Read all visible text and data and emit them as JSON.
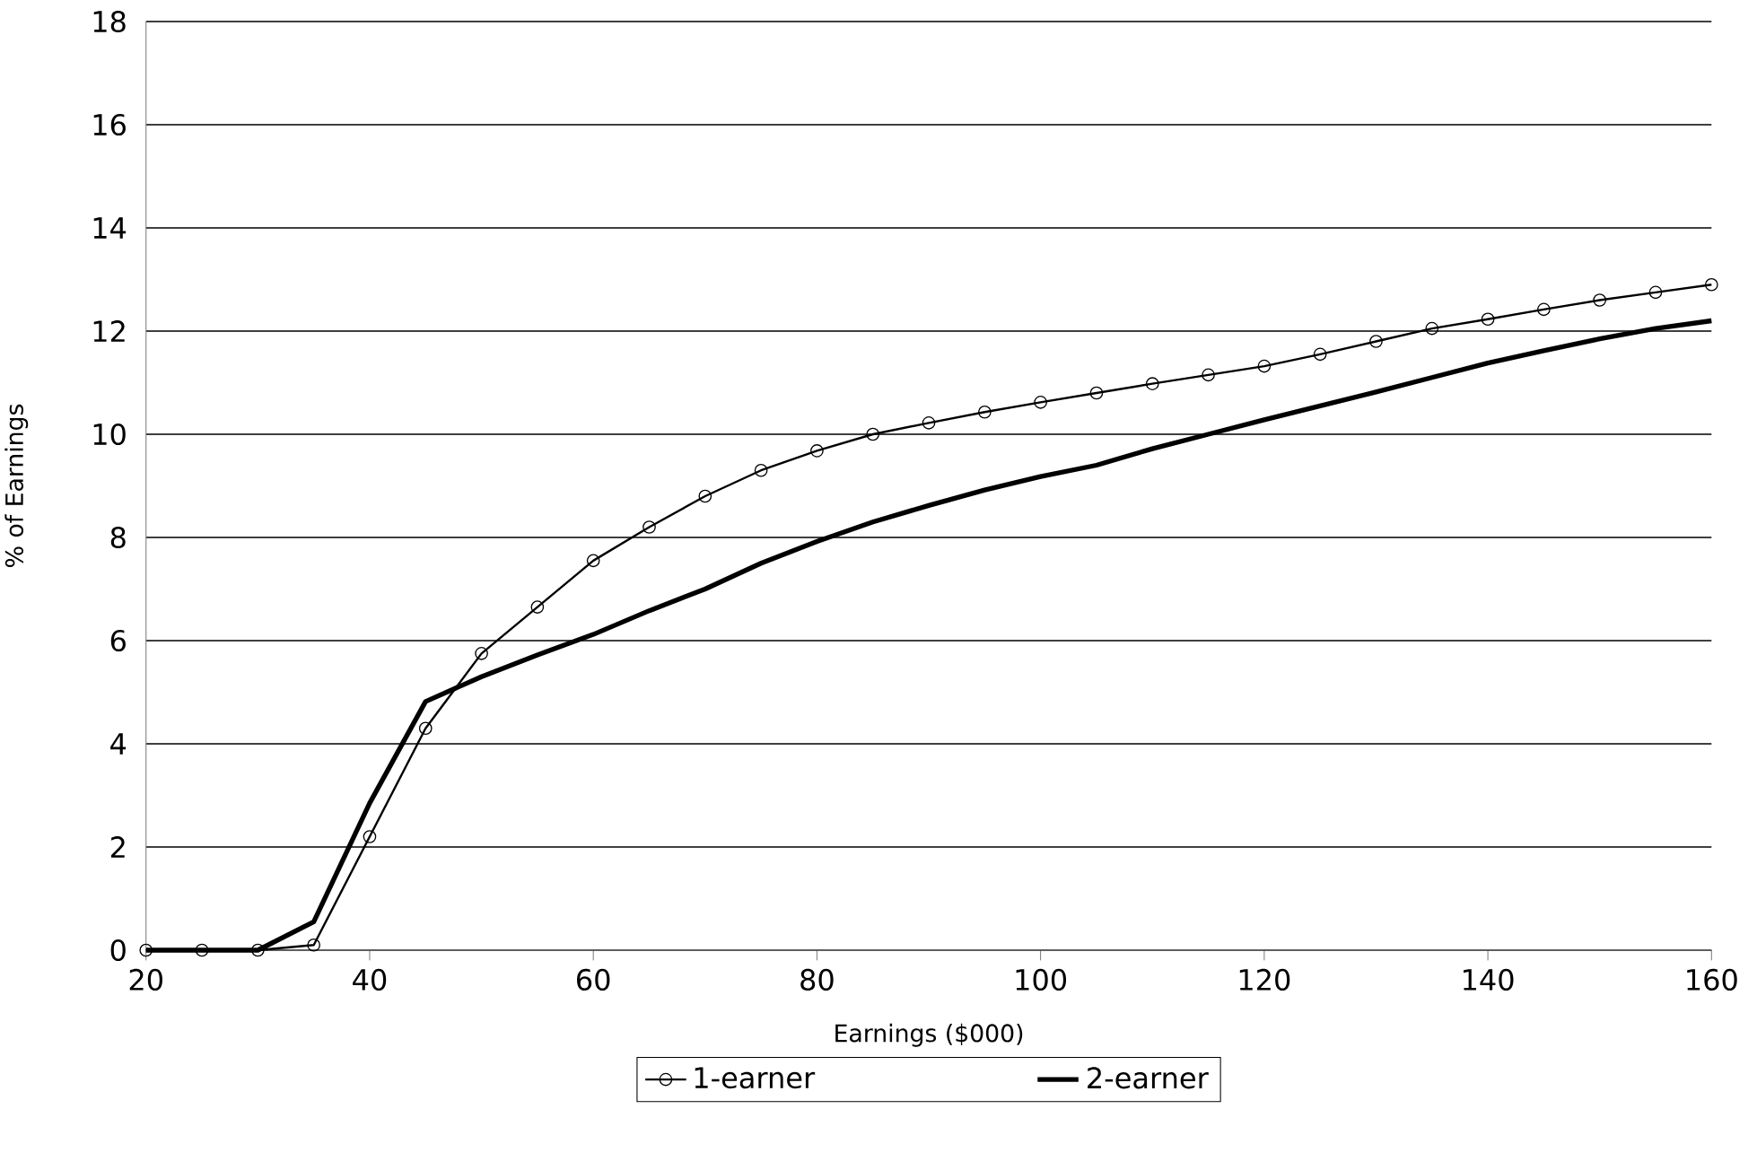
{
  "chart_data": {
    "type": "line",
    "xlabel": "Earnings ($000)",
    "ylabel": "% of Earnings",
    "x": [
      20,
      25,
      30,
      35,
      40,
      45,
      50,
      55,
      60,
      65,
      70,
      75,
      80,
      85,
      90,
      95,
      100,
      105,
      110,
      115,
      120,
      125,
      130,
      135,
      140,
      145,
      150,
      155,
      160
    ],
    "series": [
      {
        "name": "1-earner",
        "color": "#000000",
        "marker": "circle",
        "values": [
          0,
          0,
          0,
          0.1,
          2.2,
          4.3,
          5.75,
          6.65,
          7.55,
          8.2,
          8.8,
          9.3,
          9.68,
          10.0,
          10.22,
          10.43,
          10.62,
          10.8,
          10.98,
          11.15,
          11.32,
          11.55,
          11.8,
          12.05,
          12.23,
          12.42,
          12.6,
          12.75,
          12.9
        ]
      },
      {
        "name": "2-earner",
        "color": "#000000",
        "marker": "none",
        "values": [
          0,
          0,
          0,
          0.55,
          2.85,
          4.82,
          5.3,
          5.72,
          6.12,
          6.58,
          7.0,
          7.5,
          7.92,
          8.3,
          8.62,
          8.92,
          9.18,
          9.4,
          9.72,
          10.0,
          10.28,
          10.55,
          10.82,
          11.1,
          11.38,
          11.62,
          11.85,
          12.05,
          12.2
        ]
      }
    ],
    "xlim": [
      20,
      160
    ],
    "xticks": [
      20,
      40,
      60,
      80,
      100,
      120,
      140,
      160
    ],
    "ylim": [
      0,
      18
    ],
    "yticks": [
      0,
      2,
      4,
      6,
      8,
      10,
      12,
      14,
      16,
      18
    ],
    "grid": "y",
    "legend": "bottom",
    "line_style": "solid"
  }
}
